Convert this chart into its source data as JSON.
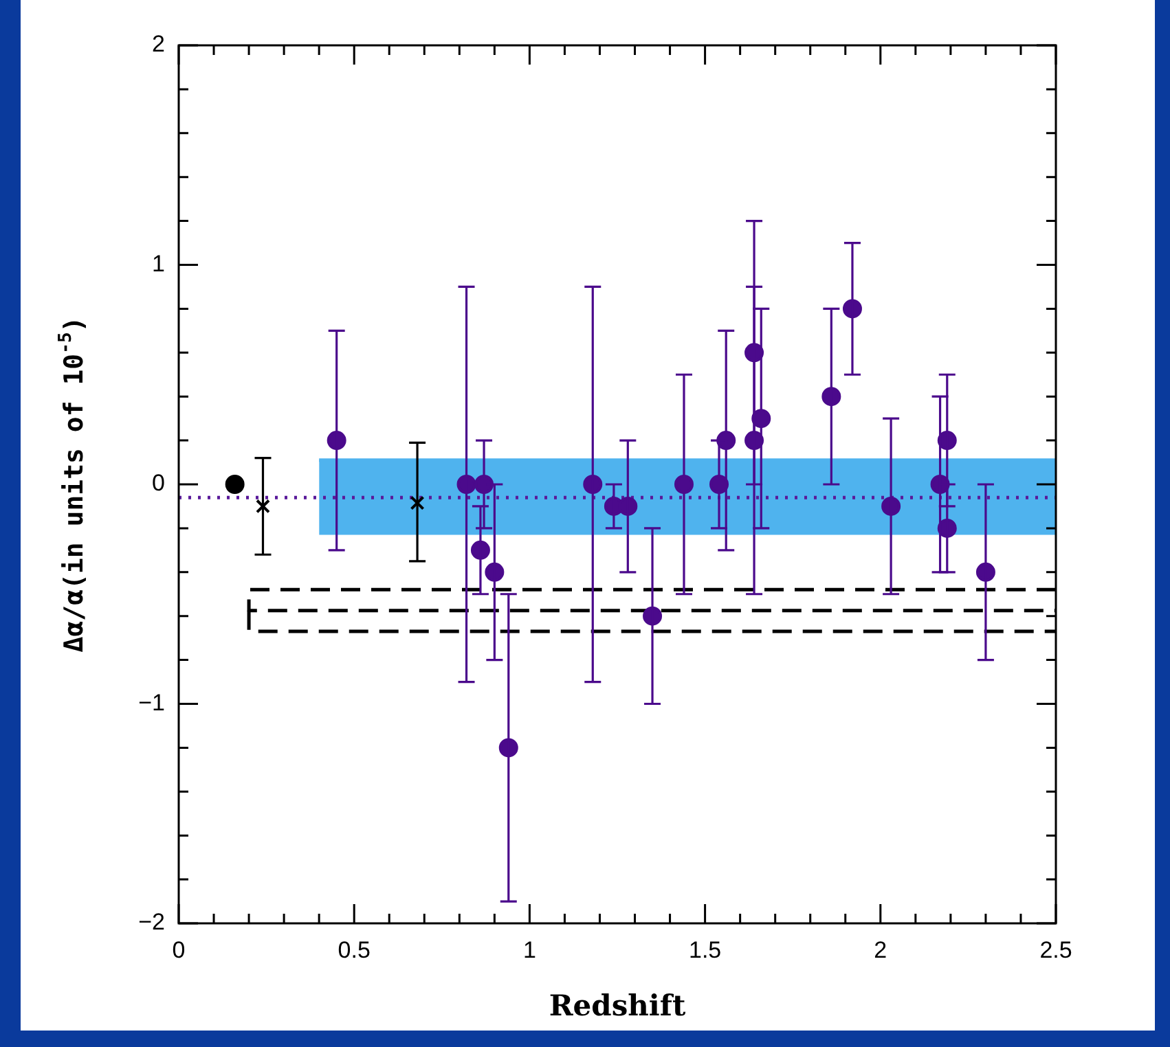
{
  "chart_data": {
    "type": "scatter",
    "xlabel": "Redshift",
    "ylabel": "Δα/α(in units of 10$^{-5}$)",
    "xlim": [
      0,
      2.5
    ],
    "ylim": [
      -2,
      2
    ],
    "xticks": [
      0,
      {
        "value": 0.1,
        "label": null
      },
      {
        "value": 0.2,
        "label": null
      },
      {
        "value": 0.3,
        "label": null
      },
      {
        "value": 0.4,
        "label": null
      },
      {
        "value": 0.5,
        "label": "0.5"
      },
      {
        "value": 0.6,
        "label": null
      },
      {
        "value": 0.7,
        "label": null
      },
      {
        "value": 0.8,
        "label": null
      },
      {
        "value": 0.9,
        "label": null
      },
      1,
      {
        "value": 1.1,
        "label": null
      },
      {
        "value": 1.2,
        "label": null
      },
      {
        "value": 1.3,
        "label": null
      },
      {
        "value": 1.4,
        "label": null
      },
      {
        "value": 1.5,
        "label": "1.5"
      },
      {
        "value": 1.6,
        "label": null
      },
      {
        "value": 1.7,
        "label": null
      },
      {
        "value": 1.8,
        "label": null
      },
      {
        "value": 1.9,
        "label": null
      },
      2,
      {
        "value": 2.1,
        "label": null
      },
      {
        "value": 2.2,
        "label": null
      },
      {
        "value": 2.3,
        "label": null
      },
      {
        "value": 2.4,
        "label": null
      },
      {
        "value": 2.5,
        "label": "2.5"
      }
    ],
    "yticks": [
      {
        "value": -2,
        "label": "−2"
      },
      {
        "value": -1.8,
        "label": null
      },
      {
        "value": -1.6,
        "label": null
      },
      {
        "value": -1.4,
        "label": null
      },
      {
        "value": -1.2,
        "label": null
      },
      {
        "value": -1,
        "label": "−1"
      },
      {
        "value": -0.8,
        "label": null
      },
      {
        "value": -0.6,
        "label": null
      },
      {
        "value": -0.4,
        "label": null
      },
      {
        "value": -0.2,
        "label": null
      },
      0,
      {
        "value": 0.2,
        "label": null
      },
      {
        "value": 0.4,
        "label": null
      },
      {
        "value": 0.6,
        "label": null
      },
      {
        "value": 0.8,
        "label": null
      },
      1,
      {
        "value": 1.2,
        "label": null
      },
      {
        "value": 1.4,
        "label": null
      },
      {
        "value": 1.6,
        "label": null
      },
      {
        "value": 1.8,
        "label": null
      },
      2
    ],
    "grid": false,
    "legend": false,
    "series": [
      {
        "type": "line",
        "color": "#4fb3ee",
        "line_style": "solid",
        "marker": "none",
        "x": [
          0.4,
          2.5
        ],
        "values": [
          0.11,
          0.11
        ],
        "lower": [
          -0.23,
          -0.23
        ],
        "upper": [
          0.11,
          0.11
        ]
      },
      {
        "type": "line",
        "color": "#5a1a9a",
        "line_style": "dotted",
        "marker": "none",
        "x": [
          0,
          2.5
        ],
        "values": [
          -0.06,
          -0.06
        ]
      },
      {
        "type": "line",
        "color": "#000000",
        "line_style": "dashed",
        "marker": "none",
        "x": [
          2.5,
          0.2,
          0.2,
          2.5
        ],
        "values": [
          -0.48,
          -0.48,
          -0.575,
          -0.575
        ]
      },
      {
        "type": "line",
        "color": "#000000",
        "line_style": "dashed",
        "marker": "none",
        "x": [
          0.2,
          0.2,
          2.5
        ],
        "values": [
          -0.575,
          -0.67,
          -0.67
        ]
      },
      {
        "type": "scatter",
        "color": "#4b0a8c",
        "marker": "circle",
        "x": [
          0.45,
          0.82,
          0.86,
          0.87,
          0.9,
          0.94,
          1.18,
          1.24,
          1.28,
          1.35,
          1.44,
          1.54,
          1.56,
          1.64,
          1.64,
          1.66,
          1.86,
          1.92,
          2.03,
          2.17,
          2.19,
          2.19,
          2.3
        ],
        "values": [
          0.2,
          0,
          -0.3,
          0,
          -0.4,
          -1.2,
          0,
          -0.1,
          -0.1,
          -0.6,
          0,
          0,
          0.2,
          0.6,
          0.2,
          0.3,
          0.4,
          0.8,
          -0.1,
          0,
          0.2,
          -0.2,
          -0.4
        ],
        "errors": [
          [
            -0.3,
            0.7
          ],
          [
            -0.9,
            0.9
          ],
          [
            -0.5,
            -0.1
          ],
          [
            -0.2,
            0.2
          ],
          [
            -0.8,
            0
          ],
          [
            -1.9,
            -0.5
          ],
          [
            -0.9,
            0.9
          ],
          [
            -0.2,
            0
          ],
          [
            -0.4,
            0.2
          ],
          [
            -1,
            -0.2
          ],
          [
            -0.5,
            0.5
          ],
          [
            -0.2,
            0.2
          ],
          [
            -0.3,
            0.7
          ],
          [
            0,
            1.2
          ],
          [
            -0.5,
            0.9
          ],
          [
            -0.2,
            0.8
          ],
          [
            0,
            0.8
          ],
          [
            0.5,
            1.1
          ],
          [
            -0.5,
            0.3
          ],
          [
            -0.4,
            0.4
          ],
          [
            -0.1,
            0.5
          ],
          [
            -0.4,
            0
          ],
          [
            -0.8,
            0
          ]
        ]
      },
      {
        "type": "scatter",
        "color": "#000000",
        "marker": "cross",
        "x": [
          0.24,
          0.68
        ],
        "values": [
          -0.1,
          -0.085
        ],
        "errors": [
          [
            -0.32,
            0.12
          ],
          [
            -0.35,
            0.19
          ]
        ]
      },
      {
        "type": "scatter",
        "color": "#000000",
        "marker": "circle",
        "x": [
          0.16
        ],
        "values": [
          0
        ]
      }
    ]
  }
}
